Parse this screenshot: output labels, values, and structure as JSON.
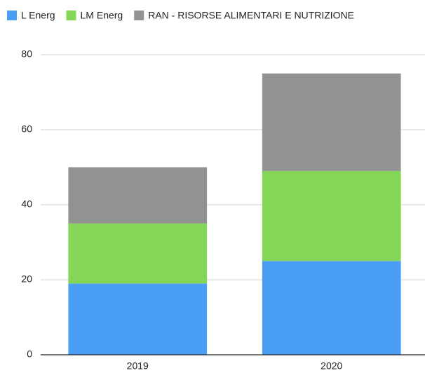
{
  "chart_data": {
    "type": "stacked_bar",
    "categories": [
      "2019",
      "2020"
    ],
    "series": [
      {
        "name": "L Energ",
        "color": "#4a9ff5",
        "values": [
          19,
          25
        ]
      },
      {
        "name": "LM Energ",
        "color": "#83d656",
        "values": [
          16,
          24
        ]
      },
      {
        "name": "RAN - RISORSE ALIMENTARI E NUTRIZIONE",
        "color": "#929292",
        "values": [
          15,
          26
        ]
      }
    ],
    "ylim": [
      0,
      80
    ],
    "yticks": [
      0,
      20,
      40,
      60,
      80
    ],
    "grid": true,
    "legend": "top"
  }
}
